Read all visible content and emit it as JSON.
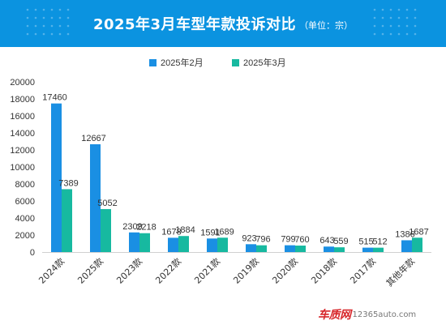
{
  "header": {
    "title": "2025年3月车型年款投诉对比",
    "unit": "（单位：宗）"
  },
  "colors": {
    "header_bg": "#0b93e0",
    "series_feb": "#1a8fe3",
    "series_mar": "#17b9a0"
  },
  "watermark": {
    "brand": "车质网",
    "domain": "12365auto.com"
  },
  "chart_data": {
    "type": "bar",
    "categories": [
      "2024款",
      "2025款",
      "2023款",
      "2022款",
      "2021款",
      "2019款",
      "2020款",
      "2018款",
      "2017款",
      "其他年款"
    ],
    "series": [
      {
        "name": "2025年2月",
        "values": [
          17460,
          12667,
          2309,
          1678,
          1591,
          923,
          799,
          643,
          515,
          1386
        ]
      },
      {
        "name": "2025年3月",
        "values": [
          7389,
          5052,
          2218,
          1884,
          1689,
          796,
          760,
          559,
          512,
          1687
        ]
      }
    ],
    "yticks": [
      0,
      2000,
      4000,
      6000,
      8000,
      10000,
      12000,
      14000,
      16000,
      18000,
      20000
    ],
    "ylim": [
      0,
      20000
    ],
    "legend": "top-center",
    "grid": false
  }
}
